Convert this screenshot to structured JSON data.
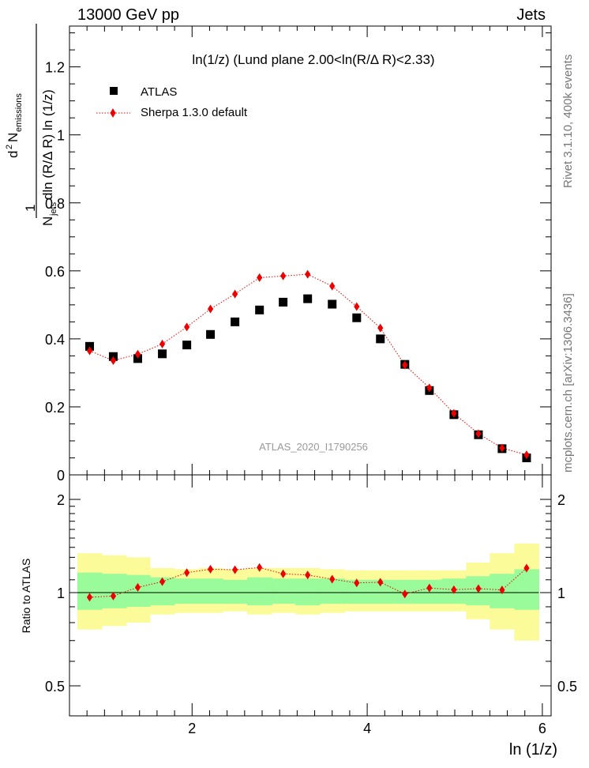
{
  "header": {
    "left": "13000 GeV pp",
    "right": "Jets"
  },
  "side_labels": {
    "rivet": "Rivet 3.1.10,  400k events",
    "mcplots": "mcplots.cern.ch [arXiv:1306.3436]"
  },
  "chart_data": [
    {
      "type": "scatter",
      "title": "ln(1/z) (Lund plane 2.00<ln(R/Δ R)<2.33)",
      "ylabel": "1/N_jets dln (R/Δ R) ln (1/z) d² N_emissions",
      "ylabel_parts": {
        "frac_num": "1",
        "d2": "d",
        "sup2": "2",
        "n1": "N",
        "sub_emissions": "emissions",
        "n2": "N",
        "sub_jets": "jets",
        "tail": "dln (R/Δ R) ln (1/z)"
      },
      "xlabel": "ln (1/z)",
      "xlim": [
        0.6,
        6.1
      ],
      "ylim": [
        0,
        1.32
      ],
      "yticks": [
        "0",
        "0.2",
        "0.4",
        "0.6",
        "0.8",
        "1",
        "1.2"
      ],
      "ytick_values": [
        0,
        0.2,
        0.4,
        0.6,
        0.8,
        1.0,
        1.2
      ],
      "x": [
        0.83,
        1.1,
        1.38,
        1.66,
        1.94,
        2.21,
        2.49,
        2.77,
        3.04,
        3.32,
        3.6,
        3.88,
        4.15,
        4.43,
        4.71,
        4.99,
        5.27,
        5.54,
        5.82
      ],
      "series": [
        {
          "name": "ATLAS",
          "marker": "square",
          "color": "#000000",
          "values": [
            0.378,
            0.348,
            0.342,
            0.356,
            0.382,
            0.413,
            0.45,
            0.485,
            0.508,
            0.518,
            0.502,
            0.462,
            0.4,
            0.325,
            0.248,
            0.177,
            0.118,
            0.077,
            0.05
          ]
        },
        {
          "name": "Sherpa 1.3.0 default",
          "marker": "diamond",
          "color": "#ee0000",
          "line": "dotted",
          "values": [
            0.365,
            0.336,
            0.355,
            0.385,
            0.435,
            0.488,
            0.532,
            0.58,
            0.585,
            0.59,
            0.555,
            0.495,
            0.432,
            0.323,
            0.256,
            0.181,
            0.121,
            0.079,
            0.059
          ]
        }
      ],
      "legend_position": "top-left",
      "watermark": "ATLAS_2020_I1790256"
    },
    {
      "type": "scatter",
      "ylabel": "Ratio to ATLAS",
      "xlabel": "ln (1/z)",
      "xlim": [
        0.6,
        6.1
      ],
      "ylim": [
        0.4,
        2.4
      ],
      "log_y": true,
      "yticks": [
        "0.5",
        "1",
        "2"
      ],
      "ytick_values": [
        0.5,
        1,
        2
      ],
      "xticks": [
        "2",
        "4",
        "6"
      ],
      "xtick_values": [
        2,
        4,
        6
      ],
      "x_edges": [
        0.69,
        0.97,
        1.25,
        1.52,
        1.8,
        2.08,
        2.35,
        2.63,
        2.91,
        3.18,
        3.46,
        3.74,
        4.02,
        4.29,
        4.57,
        4.85,
        5.13,
        5.4,
        5.68,
        5.96
      ],
      "band_yellow": {
        "low": [
          0.76,
          0.78,
          0.8,
          0.85,
          0.86,
          0.86,
          0.87,
          0.85,
          0.86,
          0.85,
          0.86,
          0.87,
          0.87,
          0.87,
          0.87,
          0.87,
          0.82,
          0.76,
          0.7
        ],
        "high": [
          1.34,
          1.32,
          1.3,
          1.2,
          1.19,
          1.2,
          1.19,
          1.2,
          1.2,
          1.2,
          1.19,
          1.18,
          1.18,
          1.18,
          1.18,
          1.18,
          1.25,
          1.34,
          1.44
        ]
      },
      "band_green": {
        "low": [
          0.88,
          0.89,
          0.9,
          0.91,
          0.92,
          0.92,
          0.92,
          0.91,
          0.92,
          0.91,
          0.92,
          0.92,
          0.92,
          0.92,
          0.92,
          0.92,
          0.91,
          0.89,
          0.88
        ],
        "high": [
          1.16,
          1.15,
          1.14,
          1.12,
          1.11,
          1.11,
          1.1,
          1.12,
          1.11,
          1.11,
          1.11,
          1.1,
          1.1,
          1.1,
          1.1,
          1.11,
          1.13,
          1.15,
          1.19
        ]
      },
      "series": [
        {
          "name": "Sherpa 1.3.0 default",
          "color": "#ee0000",
          "values": [
            0.966,
            0.975,
            1.04,
            1.085,
            1.16,
            1.19,
            1.185,
            1.205,
            1.15,
            1.14,
            1.105,
            1.075,
            1.08,
            0.99,
            1.035,
            1.022,
            1.03,
            1.02,
            1.2
          ]
        }
      ]
    }
  ]
}
